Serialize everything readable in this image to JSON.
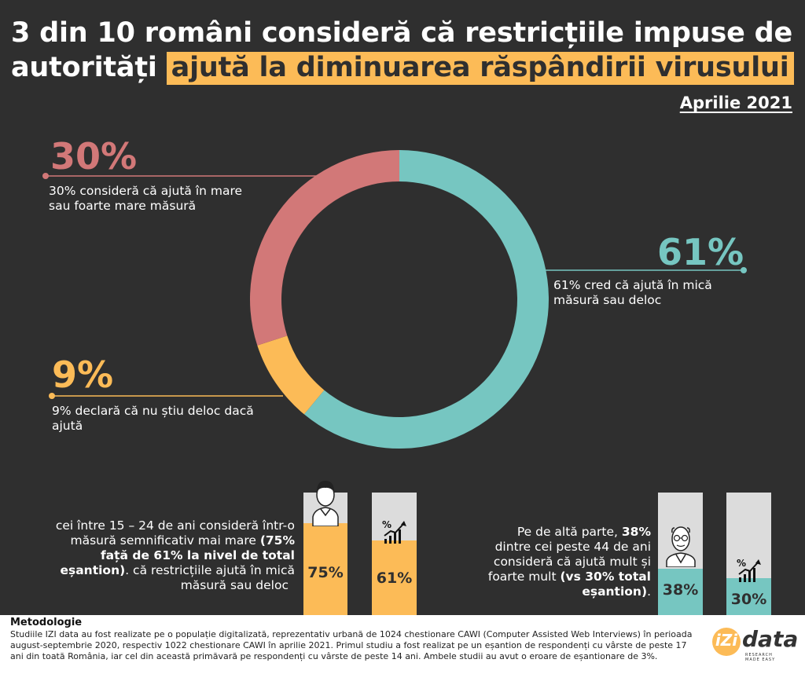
{
  "header": {
    "title_line1": "3 din 10 români consideră că restricțiile impuse de",
    "title_line2_plain": "autorități",
    "title_line2_highlight": "ajută la diminuarea răspândirii virusului",
    "date": "Aprilie 2021"
  },
  "chart_data": {
    "type": "pie",
    "variant": "donut",
    "slices": [
      {
        "label": "61%",
        "value": 61,
        "color": "#76c6c1",
        "description": "61% cred că ajută în mică măsură sau deloc"
      },
      {
        "label": "9%",
        "value": 9,
        "color": "#fcbb57",
        "description": "9% declară că nu știu deloc dacă ajută"
      },
      {
        "label": "30%",
        "value": 30,
        "color": "#d27878",
        "description": "30% consideră că ajută în mare sau foarte mare măsură"
      }
    ]
  },
  "callouts": {
    "pct30": {
      "value": "30%",
      "line1": "30% consideră că ajută în mare",
      "line2": "sau foarte mare măsură"
    },
    "pct61": {
      "value": "61%",
      "line1": "61% cred că ajută în mică",
      "line2": "măsură sau deloc"
    },
    "pct9": {
      "value": "9%",
      "line1": "9% declară că nu știu deloc dacă",
      "line2": "ajută"
    }
  },
  "young": {
    "line1": "cei între 15 – 24 de ani consideră într-o",
    "line2_a": "măsură semnificativ mai mare ",
    "line2_b": "(75%",
    "line3": "față de 61% la nivel de total",
    "line4_a": "eșantion)",
    "line4_b": ".  că restricțiile ajută în mică",
    "line5": "măsură sau deloc",
    "bars": [
      {
        "label": "75%",
        "value": 75,
        "color": "#fcbb57",
        "icon": "young-person-icon"
      },
      {
        "label": "61%",
        "value": 61,
        "color": "#fcbb57",
        "icon": "growth-chart-icon"
      }
    ]
  },
  "old": {
    "line1_a": "Pe de altă parte, ",
    "line1_b": "38%",
    "line2": "dintre cei peste 44 de ani",
    "line3": "consideră că ajută mult și",
    "line4_a": "foarte mult ",
    "line4_b": "(vs 30% total",
    "line5_a": "eșantion)",
    "line5_b": ".",
    "bars": [
      {
        "label": "38%",
        "value": 38,
        "color": "#76c6c1",
        "icon": "older-person-icon"
      },
      {
        "label": "30%",
        "value": 30,
        "color": "#76c6c1",
        "icon": "growth-chart-icon"
      }
    ]
  },
  "footer": {
    "title": "Metodologie",
    "text": "Studiile IZI data au fost realizate pe o populație digitalizată, reprezentativ urbană de 1024 chestionare CAWI (Computer Assisted Web Interviews) în perioada august-septembrie 2020, respectiv 1022 chestionare CAWI în aprilie 2021. Primul studiu a fost realizat pe un eșantion de respondenți cu vârste de peste 17 ani din toată România, iar cel din această primăvară pe respondenți cu vârste de peste 14 ani. Ambele studii au avut o eroare de eșantionare de 3%.",
    "logo_i": "iZi",
    "logo_word": "data",
    "logo_tag": "RESEARCH MADE EASY"
  }
}
